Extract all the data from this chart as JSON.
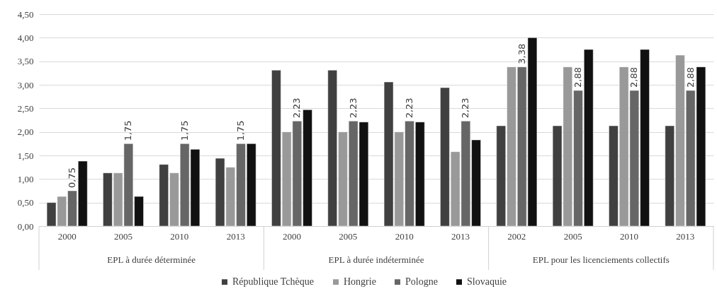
{
  "chart_data": {
    "type": "bar",
    "categories": [
      "2000",
      "2005",
      "2010",
      "2013",
      "2000",
      "2005",
      "2010",
      "2013",
      "2002",
      "2005",
      "2010",
      "2013"
    ],
    "annotations": [
      "EPL à durée déterminée",
      "EPL à durée  indéterminée",
      "EPL pour les licenciements collectifs"
    ],
    "series": [
      {
        "name": "République Tchèque",
        "color": "#404040",
        "values": [
          0.5,
          1.13,
          1.31,
          1.44,
          3.31,
          3.31,
          3.06,
          2.94,
          2.13,
          2.13,
          2.13,
          2.13
        ]
      },
      {
        "name": "Hongrie",
        "color": "#999999",
        "values": [
          0.63,
          1.13,
          1.13,
          1.25,
          2.0,
          2.0,
          2.0,
          1.58,
          3.38,
          3.38,
          3.38,
          3.63
        ]
      },
      {
        "name": "Pologne",
        "color": "#666666",
        "values": [
          0.75,
          1.75,
          1.75,
          1.75,
          2.23,
          2.23,
          2.23,
          2.23,
          3.38,
          2.88,
          2.88,
          2.88
        ],
        "value_labels": [
          "0,75",
          "1,75",
          "1,75",
          "1,75",
          "2,23",
          "2,23",
          "2,23",
          "2,23",
          "3,38",
          "2,88",
          "2,88",
          "2,88"
        ]
      },
      {
        "name": "Slovaquie",
        "color": "#111111",
        "values": [
          1.38,
          0.63,
          1.63,
          1.75,
          2.47,
          2.21,
          2.21,
          1.83,
          4.0,
          3.75,
          3.75,
          3.38
        ]
      }
    ],
    "ylim": [
      0,
      4.5
    ],
    "yticks": [
      {
        "value": 0,
        "label": "0,00"
      },
      {
        "value": 0.5,
        "label": "0,50"
      },
      {
        "value": 1,
        "label": "1,00"
      },
      {
        "value": 1.5,
        "label": "1,50"
      },
      {
        "value": 2,
        "label": "2,00"
      },
      {
        "value": 2.5,
        "label": "2,50"
      },
      {
        "value": 3,
        "label": "3,00"
      },
      {
        "value": 3.5,
        "label": "3,50"
      },
      {
        "value": 4,
        "label": "4,00"
      },
      {
        "value": 4.5,
        "label": "4,50"
      }
    ],
    "grid": "y",
    "legend": "bottom"
  }
}
